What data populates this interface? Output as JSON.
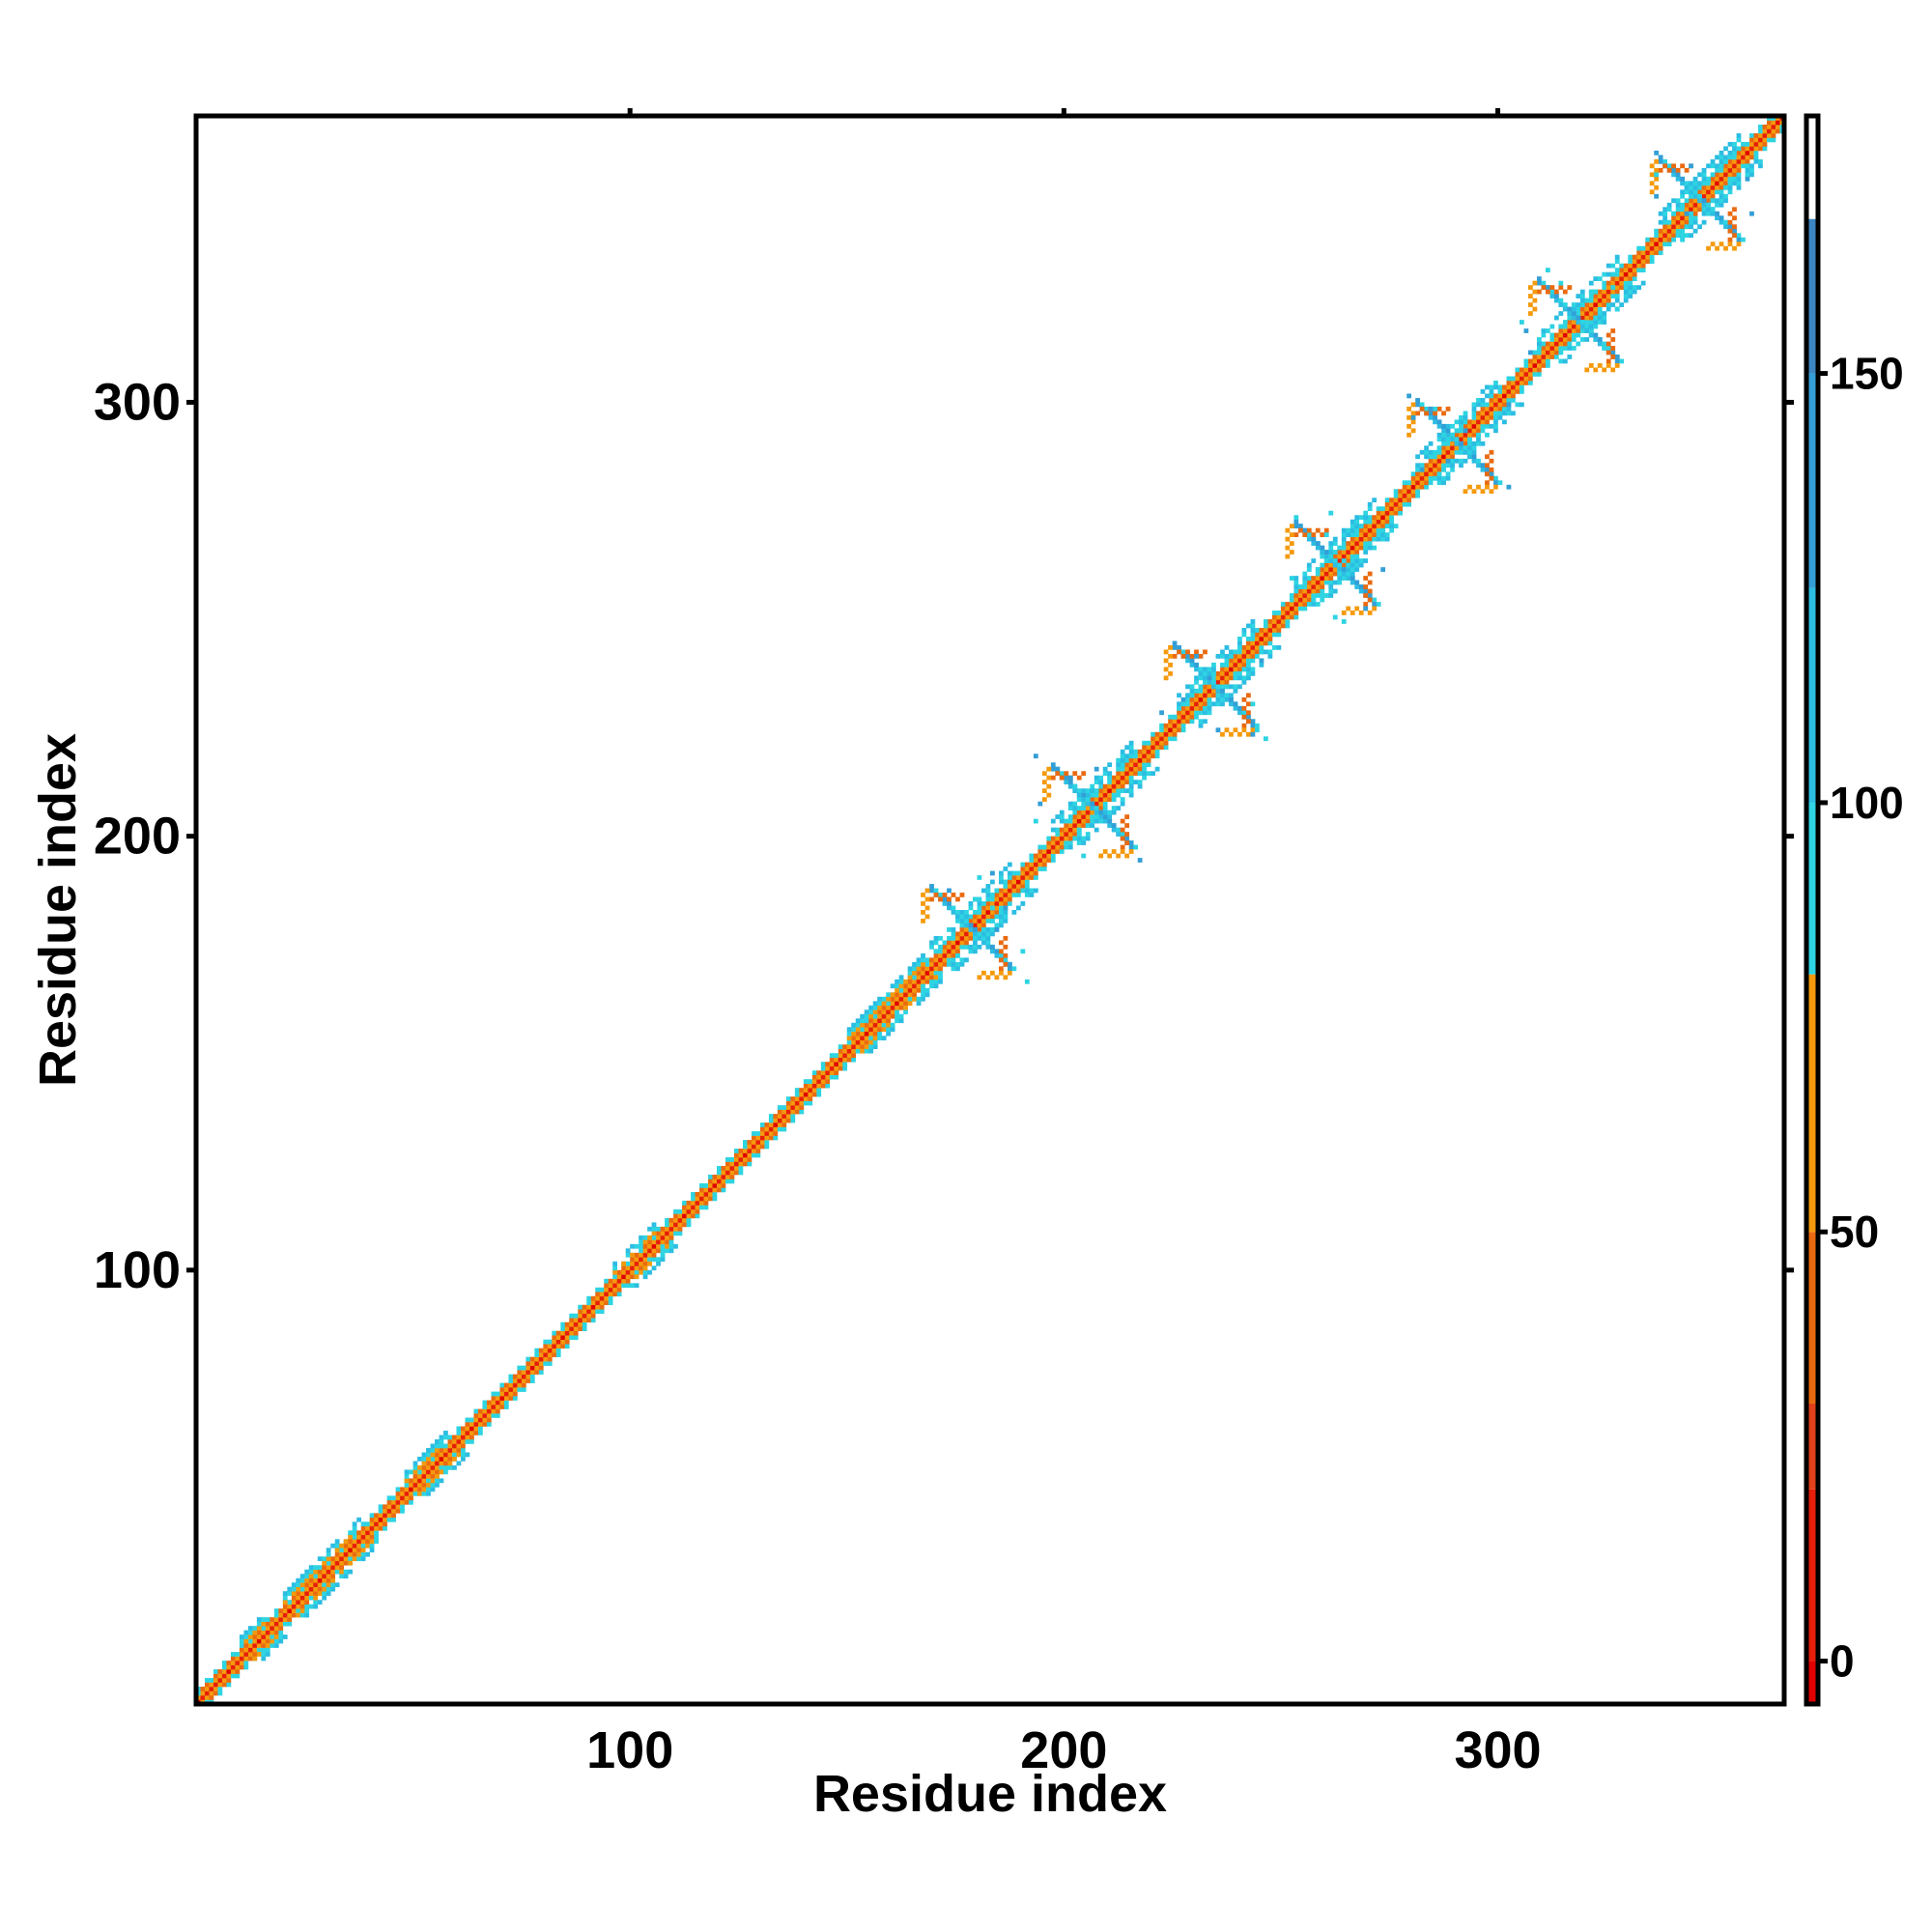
{
  "chart_data": {
    "type": "heatmap",
    "title": "",
    "xlabel": "Residue index",
    "ylabel": "Residue index",
    "xlim": [
      0,
      366
    ],
    "ylim": [
      0,
      366
    ],
    "x_ticks": [
      100,
      200,
      300
    ],
    "y_ticks": [
      100,
      200,
      300
    ],
    "colorbar": {
      "range": [
        -5,
        180
      ],
      "ticks": [
        0,
        50,
        100,
        150
      ],
      "bins": [
        {
          "from": -5,
          "to": 0,
          "color": "#e00000"
        },
        {
          "from": 0,
          "to": 20,
          "color": "#e61e0a"
        },
        {
          "from": 20,
          "to": 30,
          "color": "#e0401a"
        },
        {
          "from": 30,
          "to": 50,
          "color": "#ea6a10"
        },
        {
          "from": 50,
          "to": 80,
          "color": "#f59a0c"
        },
        {
          "from": 80,
          "to": 100,
          "color": "#2ed4e2"
        },
        {
          "from": 100,
          "to": 125,
          "color": "#2cbde2"
        },
        {
          "from": 125,
          "to": 150,
          "color": "#339fd6"
        },
        {
          "from": 150,
          "to": 168,
          "color": "#3d86c2"
        },
        {
          "from": 168,
          "to": 180,
          "color": "#ffffff"
        }
      ]
    },
    "diagonal_band": {
      "from": 0,
      "to": 366,
      "colors": [
        "#e61e0a",
        "#f59a0c",
        "#2ed4e2"
      ]
    },
    "repeat_blocks": [
      {
        "center": 178,
        "size": 18
      },
      {
        "center": 206,
        "size": 18
      },
      {
        "center": 234,
        "size": 18
      },
      {
        "center": 262,
        "size": 18
      },
      {
        "center": 290,
        "size": 18
      },
      {
        "center": 318,
        "size": 18
      },
      {
        "center": 346,
        "size": 18
      }
    ],
    "thickened_segments": [
      {
        "from": 10,
        "to": 16
      },
      {
        "from": 20,
        "to": 38
      },
      {
        "from": 48,
        "to": 58
      },
      {
        "from": 96,
        "to": 106
      },
      {
        "from": 150,
        "to": 168
      }
    ]
  }
}
